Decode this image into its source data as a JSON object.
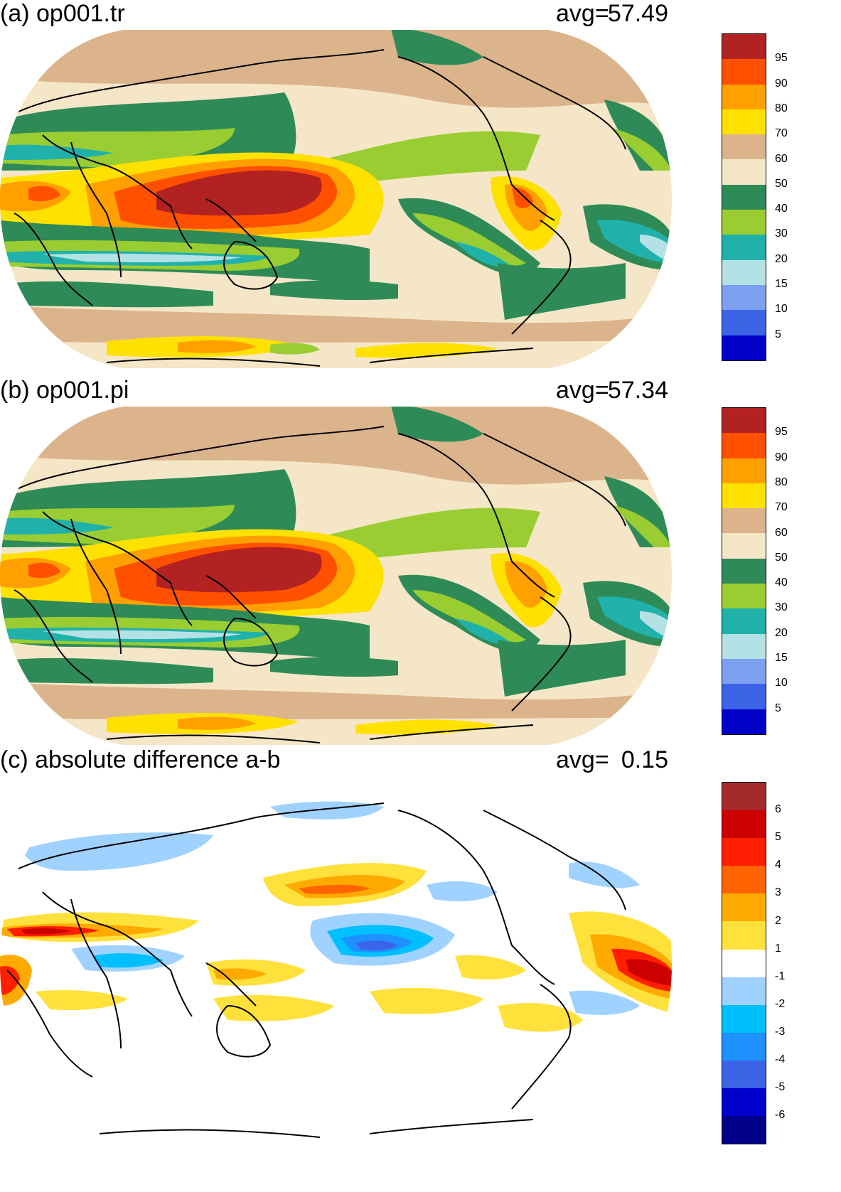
{
  "colors": {
    "pct": [
      "#0000c8",
      "#3c64e6",
      "#7da0f0",
      "#b4e1e6",
      "#20b2aa",
      "#9acd32",
      "#2e8b57",
      "#f5e6c8",
      "#dcb48c",
      "#ffe100",
      "#ffa000",
      "#ff5000",
      "#b22222"
    ],
    "diff": [
      "#00008b",
      "#0000cd",
      "#3c64e6",
      "#1e90ff",
      "#00bfff",
      "#a0d2ff",
      "#ffffff",
      "#ffe13c",
      "#ffaa00",
      "#ff6400",
      "#ff1e00",
      "#cd0000",
      "#a52a2a"
    ]
  },
  "panels": [
    {
      "title": "(a) op001.tr",
      "avg_label": "avg=",
      "avg_value": "57.49",
      "colorbar_ticks": [
        "95",
        "90",
        "80",
        "70",
        "60",
        "50",
        "40",
        "30",
        "20",
        "15",
        "10",
        "5"
      ]
    },
    {
      "title": "(b) op001.pi",
      "avg_label": "avg=",
      "avg_value": "57.34",
      "colorbar_ticks": [
        "95",
        "90",
        "80",
        "70",
        "60",
        "50",
        "40",
        "30",
        "20",
        "15",
        "10",
        "5"
      ]
    },
    {
      "title": "(c) absolute difference a-b",
      "avg_label": "avg=",
      "avg_value": "0.15",
      "colorbar_ticks": [
        "6",
        "5",
        "4",
        "3",
        "2",
        "1",
        "-1",
        "-2",
        "-3",
        "-4",
        "-5",
        "-6"
      ]
    }
  ]
}
